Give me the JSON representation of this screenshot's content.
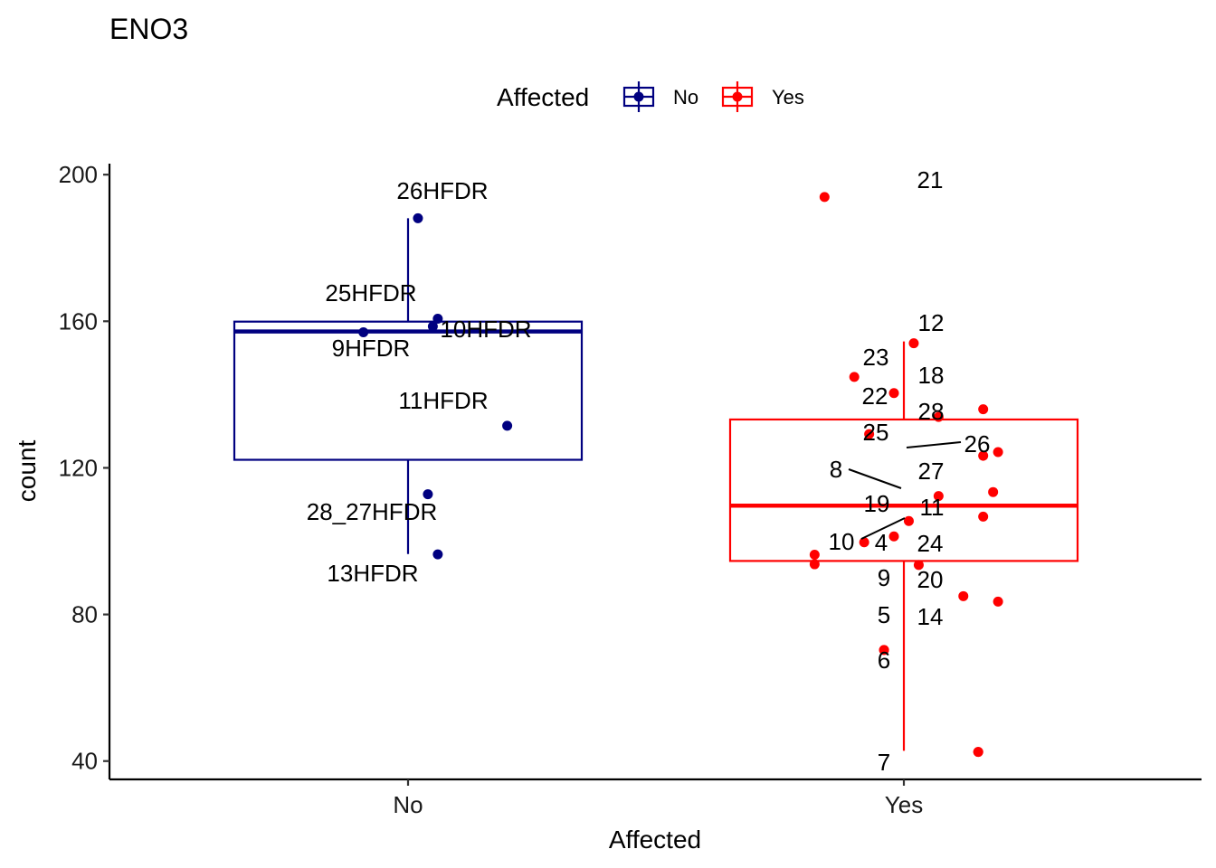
{
  "chart_data": {
    "type": "boxplot",
    "title": "ENO3",
    "xlabel": "Affected",
    "ylabel": "count",
    "categories": [
      "No",
      "Yes"
    ],
    "ylim": [
      35,
      203
    ],
    "yticks": [
      40,
      80,
      120,
      160,
      200
    ],
    "grid": false,
    "legend": {
      "title": "Affected",
      "position": "top",
      "entries": [
        {
          "label": "No",
          "color": "#000080"
        },
        {
          "label": "Yes",
          "color": "#ff0000"
        }
      ]
    },
    "series": [
      {
        "name": "No",
        "color": "#000080",
        "box": {
          "whisker_low": 96.5,
          "q1": 122.2,
          "median": 157.2,
          "q3": 159.9,
          "whisker_high": 188.1
        },
        "points": [
          {
            "label": "26HFDR",
            "x": 0.02,
            "y": 188.1
          },
          {
            "label": "25HFDR",
            "x": 0.06,
            "y": 160.7
          },
          {
            "label": "10HFDR",
            "x": 0.05,
            "y": 158.6
          },
          {
            "label": "9HFDR",
            "x": -0.09,
            "y": 157.0
          },
          {
            "label": "11HFDR",
            "x": 0.2,
            "y": 131.5
          },
          {
            "label": "28_27HFDR",
            "x": 0.04,
            "y": 112.8
          },
          {
            "label": "13HFDR",
            "x": 0.06,
            "y": 96.4
          }
        ]
      },
      {
        "name": "Yes",
        "color": "#ff0000",
        "box": {
          "whisker_low": 42.8,
          "q1": 94.6,
          "median": 109.7,
          "q3": 133.2,
          "whisker_high": 154.5
        },
        "points": [
          {
            "label": "21",
            "x": -0.16,
            "y": 193.9
          },
          {
            "label": "12",
            "x": 0.02,
            "y": 154.0
          },
          {
            "label": "23",
            "x": -0.1,
            "y": 144.8
          },
          {
            "label": "18",
            "x": -0.02,
            "y": 140.4
          },
          {
            "label": "22",
            "x": 0.16,
            "y": 136.0
          },
          {
            "label": "28",
            "x": 0.07,
            "y": 133.9
          },
          {
            "label": "25",
            "x": -0.07,
            "y": 129.2
          },
          {
            "label": "26",
            "x": 0.19,
            "y": 124.3
          },
          {
            "label": "",
            "x": 0.16,
            "y": 123.3
          },
          {
            "label": "8",
            "x": 0.18,
            "y": 113.4
          },
          {
            "label": "27",
            "x": 0.07,
            "y": 112.3
          },
          {
            "label": "",
            "x": 0.16,
            "y": 106.7
          },
          {
            "label": "11",
            "x": 0.01,
            "y": 105.5
          },
          {
            "label": "19",
            "x": -0.02,
            "y": 101.3
          },
          {
            "label": "10",
            "x": -0.08,
            "y": 99.7
          },
          {
            "label": "",
            "x": -0.18,
            "y": 96.3
          },
          {
            "label": "4",
            "x": -0.18,
            "y": 93.7
          },
          {
            "label": "24",
            "x": 0.03,
            "y": 93.5
          },
          {
            "label": "9",
            "x": 0.12,
            "y": 85.0
          },
          {
            "label": "20",
            "x": 0.19,
            "y": 83.5
          },
          {
            "label": "5",
            "x": -0.04,
            "y": 70.3
          },
          {
            "label": "14",
            "x": 0.15,
            "y": 42.5
          },
          {
            "label": "6",
            "x": -0.04,
            "y": 70.3
          },
          {
            "label": "7",
            "x": 0.15,
            "y": 42.5
          }
        ]
      }
    ]
  }
}
